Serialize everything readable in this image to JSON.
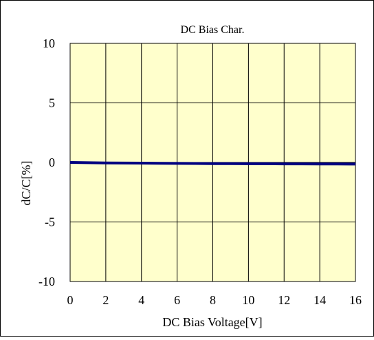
{
  "chart_data": {
    "type": "line",
    "title": "DC Bias Char.",
    "xlabel": "DC Bias Voltage[V]",
    "ylabel": "dC/C[%]",
    "xlim": [
      0,
      16
    ],
    "ylim": [
      -10,
      10
    ],
    "x_ticks": [
      0,
      2,
      4,
      6,
      8,
      10,
      12,
      14,
      16
    ],
    "y_ticks": [
      10,
      5,
      0,
      -5,
      -10
    ],
    "grid": true,
    "legend": "none",
    "plot_background": "#ffffcc",
    "series": [
      {
        "color": "#000080",
        "x": [
          0,
          1,
          2,
          3,
          4,
          5,
          6,
          7,
          8,
          9,
          10,
          11,
          12,
          13,
          14,
          15,
          16
        ],
        "y": [
          0,
          -0.02,
          -0.04,
          -0.05,
          -0.06,
          -0.07,
          -0.08,
          -0.09,
          -0.1,
          -0.1,
          -0.11,
          -0.11,
          -0.12,
          -0.12,
          -0.13,
          -0.13,
          -0.14
        ]
      }
    ]
  }
}
